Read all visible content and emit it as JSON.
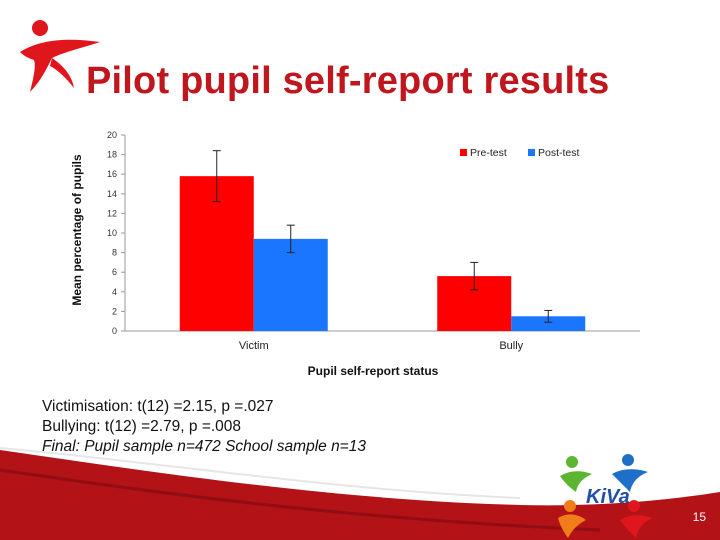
{
  "slide": {
    "title": "Pilot pupil self-report results",
    "page_number": "15",
    "logo_text": "KiVa"
  },
  "stats": {
    "line1": "Victimisation: t(12) =2.15, p =.027",
    "line2": "Bullying: t(12) =2.79, p =.008",
    "line3": "Final: Pupil sample n=472  School sample n=13"
  },
  "colors": {
    "pre_test": "#ff0000",
    "post_test": "#1a75ff",
    "title": "#c0161d",
    "accent_dark": "#8b0000"
  },
  "chart_data": {
    "type": "bar",
    "categories": [
      "Victim",
      "Bully"
    ],
    "series": [
      {
        "name": "Pre-test",
        "values": [
          15.8,
          5.6
        ],
        "error": [
          2.6,
          1.4
        ],
        "color": "#ff0000"
      },
      {
        "name": "Post-test",
        "values": [
          9.4,
          1.5
        ],
        "error": [
          1.4,
          0.6
        ],
        "color": "#1a75ff"
      }
    ],
    "xlabel": "Pupil self-report status",
    "ylabel": "Mean percentage of pupils",
    "ylim": [
      0,
      20
    ],
    "yticks": [
      0,
      2,
      4,
      6,
      8,
      10,
      12,
      14,
      16,
      18,
      20
    ],
    "legend_position": "top-right",
    "grid": false
  }
}
